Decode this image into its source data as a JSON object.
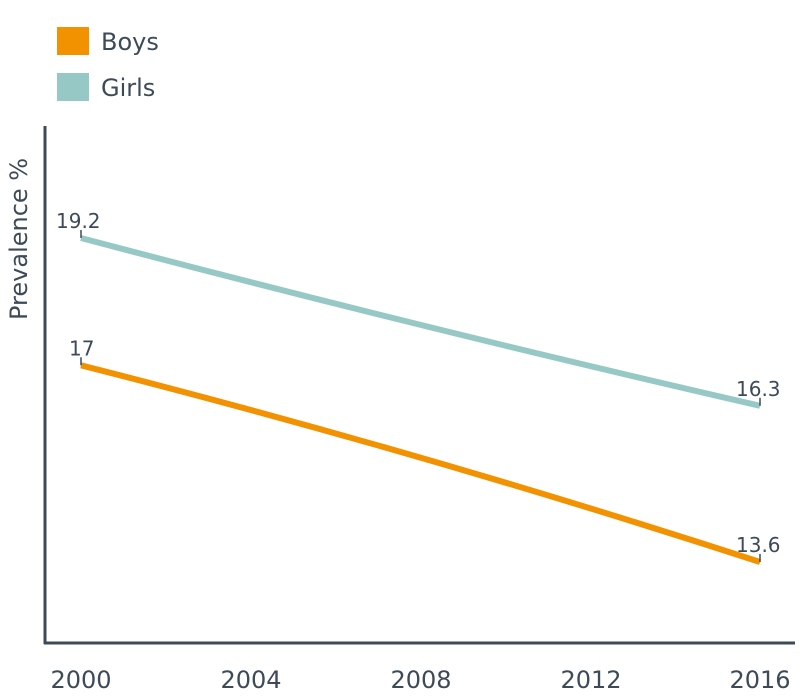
{
  "chart_data": {
    "type": "line",
    "title": "",
    "xlabel": "",
    "ylabel": "Prevalence %",
    "x": [
      2000,
      2016
    ],
    "x_ticks": [
      "2000",
      "2004",
      "2008",
      "2012",
      "2016"
    ],
    "series": [
      {
        "name": "Boys",
        "color": "#f39200",
        "values": [
          17,
          13.6
        ],
        "labels": [
          "17",
          "13.6"
        ]
      },
      {
        "name": "Girls",
        "color": "#96c9c6",
        "values": [
          19.2,
          16.3
        ],
        "labels": [
          "19.2",
          "16.3"
        ]
      }
    ],
    "legend_position": "top-left",
    "grid": false
  }
}
